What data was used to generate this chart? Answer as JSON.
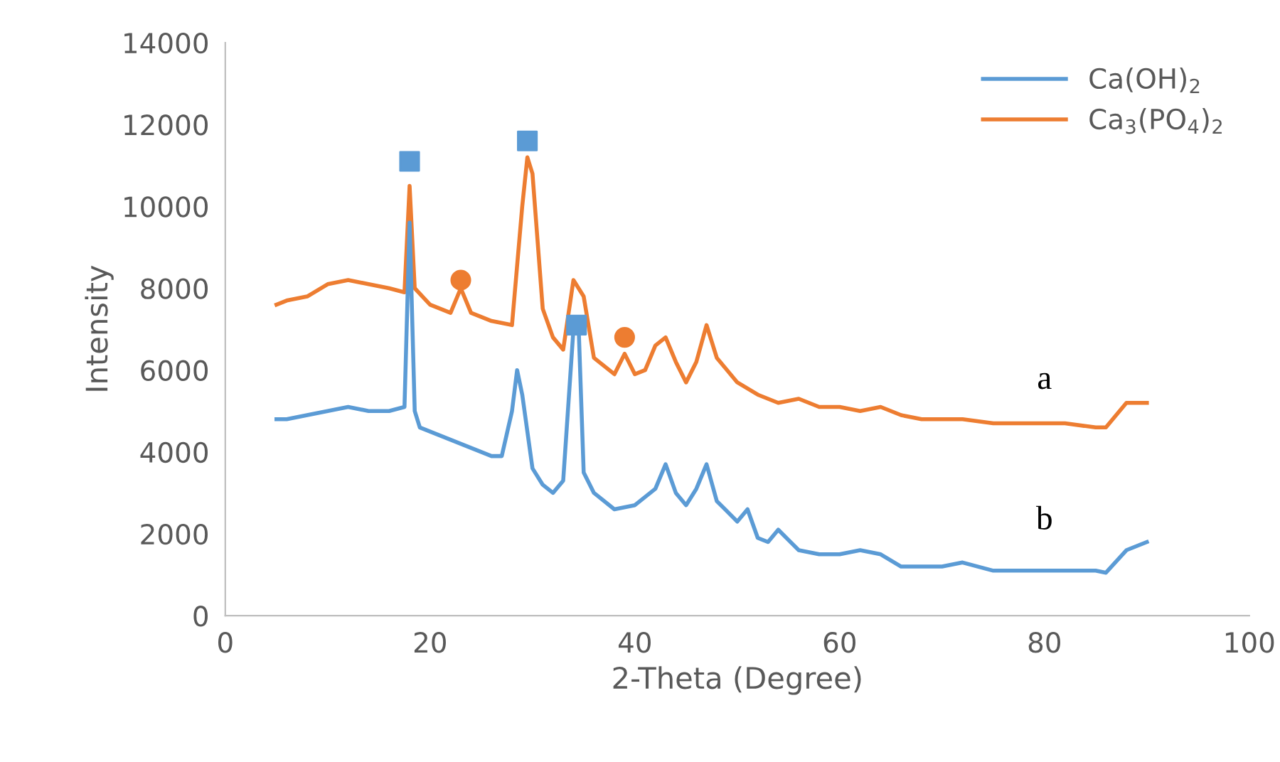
{
  "chart_data": {
    "type": "line",
    "xlabel": "2-Theta (Degree)",
    "ylabel": "Intensity",
    "xlim": [
      0,
      100
    ],
    "xticks": [
      0,
      20,
      40,
      60,
      80,
      100
    ],
    "ylim": [
      0,
      14000
    ],
    "yticks": [
      0,
      2000,
      4000,
      6000,
      8000,
      10000,
      12000,
      14000
    ],
    "grid": false,
    "legend": "top right",
    "marker": "none",
    "series": [
      {
        "name": "Ca(OH)$_{2}$",
        "color": "#5b9bd5",
        "x": [
          5,
          6,
          8,
          10,
          12,
          14,
          16,
          17.5,
          18,
          18.5,
          19,
          20,
          22,
          24,
          26,
          27,
          28,
          28.5,
          29,
          30,
          31,
          32,
          33,
          34,
          34.5,
          35,
          36,
          38,
          40,
          42,
          43,
          44,
          45,
          46,
          47,
          48,
          50,
          51,
          52,
          53,
          54,
          56,
          58,
          60,
          62,
          64,
          66,
          70,
          72,
          75,
          80,
          85,
          86,
          88,
          90
        ],
        "values": [
          4800,
          4800,
          4900,
          5000,
          5100,
          5000,
          5000,
          5100,
          9600,
          5000,
          4600,
          4500,
          4300,
          4100,
          3900,
          3900,
          5000,
          6000,
          5400,
          3600,
          3200,
          3000,
          3300,
          7000,
          7100,
          3500,
          3000,
          2600,
          2700,
          3100,
          3700,
          3000,
          2700,
          3100,
          3700,
          2800,
          2300,
          2600,
          1900,
          1800,
          2100,
          1600,
          1500,
          1500,
          1600,
          1500,
          1200,
          1200,
          1300,
          1100,
          1100,
          1100,
          1050,
          1600,
          1800
        ]
      },
      {
        "name": "Ca$_{3}$(PO$_{4}$)$_{2}$",
        "color": "#ed7d31",
        "x": [
          5,
          6,
          8,
          10,
          12,
          14,
          16,
          17.5,
          18,
          18.5,
          20,
          22,
          23,
          24,
          26,
          28,
          29,
          29.5,
          30,
          31,
          32,
          33,
          34,
          35,
          36,
          38,
          39,
          40,
          41,
          42,
          43,
          44,
          45,
          46,
          47,
          48,
          50,
          52,
          54,
          56,
          58,
          60,
          62,
          64,
          66,
          68,
          70,
          72,
          75,
          78,
          80,
          82,
          85,
          86,
          88,
          90
        ],
        "values": [
          7600,
          7700,
          7800,
          8100,
          8200,
          8100,
          8000,
          7900,
          10500,
          8000,
          7600,
          7400,
          8000,
          7400,
          7200,
          7100,
          10000,
          11200,
          10800,
          7500,
          6800,
          6500,
          8200,
          7800,
          6300,
          5900,
          6400,
          5900,
          6000,
          6600,
          6800,
          6200,
          5700,
          6200,
          7100,
          6300,
          5700,
          5400,
          5200,
          5300,
          5100,
          5100,
          5000,
          5100,
          4900,
          4800,
          4800,
          4800,
          4700,
          4700,
          4700,
          4700,
          4600,
          4600,
          5200,
          5200
        ]
      },
      {
        "type": "scatter",
        "marker": "square",
        "color": "#5b9bd5",
        "x": [
          18,
          29.5,
          34.3
        ],
        "values": [
          11100,
          11600,
          7100
        ]
      },
      {
        "type": "scatter",
        "marker": "circle",
        "color": "#ed7d31",
        "x": [
          23,
          39
        ],
        "values": [
          8200,
          6800
        ]
      }
    ],
    "annotations": [
      "a",
      "b"
    ]
  }
}
